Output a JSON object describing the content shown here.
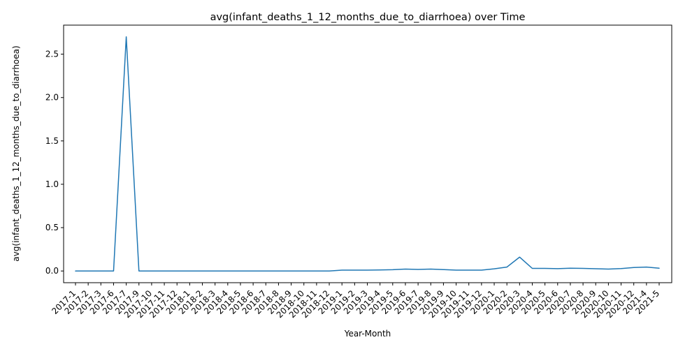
{
  "chart_data": {
    "type": "line",
    "title": "avg(infant_deaths_1_12_months_due_to_diarrhoea) over Time",
    "xlabel": "Year-Month",
    "ylabel": "avg(infant_deaths_1_12_months_due_to_diarrhoea)",
    "ylim": [
      -0.135,
      2.835
    ],
    "yticks": [
      "0.0",
      "0.5",
      "1.0",
      "1.5",
      "2.0",
      "2.5"
    ],
    "grid": false,
    "series_color": "#1f77b4",
    "categories": [
      "2017-1",
      "2017-2",
      "2017-3",
      "2017-6",
      "2017-7",
      "2017-9",
      "2017-10",
      "2017-11",
      "2017-12",
      "2018-1",
      "2018-2",
      "2018-3",
      "2018-4",
      "2018-5",
      "2018-6",
      "2018-7",
      "2018-8",
      "2018-9",
      "2018-10",
      "2018-11",
      "2018-12",
      "2019-1",
      "2019-2",
      "2019-3",
      "2019-4",
      "2019-5",
      "2019-6",
      "2019-7",
      "2019-8",
      "2019-9",
      "2019-10",
      "2019-11",
      "2019-12",
      "2020-1",
      "2020-2",
      "2020-3",
      "2020-4",
      "2020-5",
      "2020-6",
      "2020-7",
      "2020-8",
      "2020-9",
      "2020-10",
      "2020-11",
      "2020-12",
      "2021-4",
      "2021-5"
    ],
    "values": [
      0.0,
      0.0,
      0.0,
      0.0,
      2.7,
      0.0,
      0.0,
      0.0,
      0.0,
      0.0,
      0.0,
      0.0,
      0.0,
      0.0,
      0.0,
      0.0,
      0.0,
      0.0,
      0.0,
      0.0,
      0.0,
      0.01,
      0.01,
      0.01,
      0.012,
      0.015,
      0.022,
      0.018,
      0.022,
      0.016,
      0.01,
      0.01,
      0.01,
      0.025,
      0.045,
      0.16,
      0.03,
      0.03,
      0.027,
      0.032,
      0.03,
      0.026,
      0.022,
      0.028,
      0.04,
      0.045,
      0.032
    ]
  }
}
